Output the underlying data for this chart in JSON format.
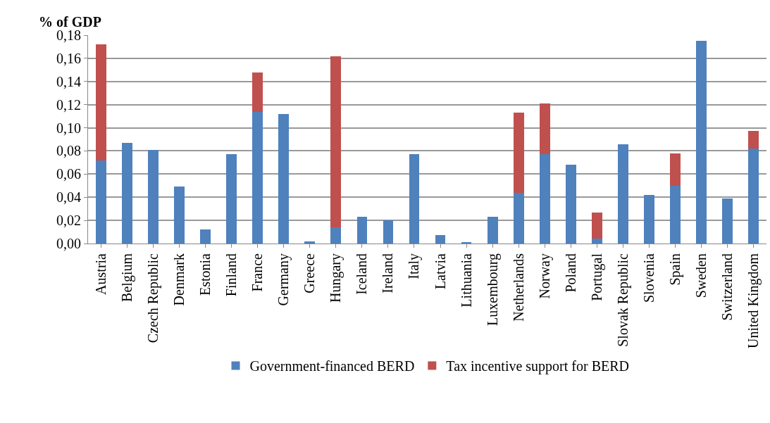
{
  "chart_data": {
    "type": "bar",
    "ylabel": "% of GDP",
    "stacked": true,
    "grid": "y",
    "legend": "bottom",
    "categories": [
      "Austria",
      "Belgium",
      "Czech Republic",
      "Denmark",
      "Estonia",
      "Finland",
      "France",
      "Germany",
      "Greece",
      "Hungary",
      "Iceland",
      "Ireland",
      "Italy",
      "Latvia",
      "Lithuania",
      "Luxembourg",
      "Netherlands",
      "Norway",
      "Poland",
      "Portugal",
      "Slovak Republic",
      "Slovenia",
      "Spain",
      "Sweden",
      "Switzerland",
      "United Kingdom"
    ],
    "series": [
      {
        "name": "Government-financed BERD",
        "color": "#4f81bd",
        "values": [
          0.072,
          0.087,
          0.081,
          0.049,
          0.012,
          0.077,
          0.114,
          0.112,
          0.002,
          0.014,
          0.023,
          0.02,
          0.077,
          0.007,
          0.001,
          0.023,
          0.044,
          0.077,
          0.068,
          0.004,
          0.086,
          0.042,
          0.05,
          0.175,
          0.039,
          0.082
        ]
      },
      {
        "name": "Tax incentive support for BERD",
        "color": "#c0504d",
        "values": [
          0.1,
          0,
          0,
          0,
          0,
          0,
          0.034,
          0,
          0,
          0.148,
          0,
          0,
          0,
          0,
          0,
          0,
          0.069,
          0.044,
          0,
          0.023,
          0,
          0,
          0.028,
          0,
          0,
          0.015
        ]
      }
    ],
    "ylim": [
      0,
      0.18
    ],
    "yticks": [
      {
        "value": 0,
        "label": "0,00"
      },
      {
        "value": 0.02,
        "label": "0,02"
      },
      {
        "value": 0.04,
        "label": "0,04"
      },
      {
        "value": 0.06,
        "label": "0,06"
      },
      {
        "value": 0.08,
        "label": "0,08"
      },
      {
        "value": 0.1,
        "label": "0,10"
      },
      {
        "value": 0.12,
        "label": "0,12"
      },
      {
        "value": 0.14,
        "label": "0,14"
      },
      {
        "value": 0.16,
        "label": "0,16"
      },
      {
        "value": 0.18,
        "label": "0,18"
      }
    ]
  }
}
